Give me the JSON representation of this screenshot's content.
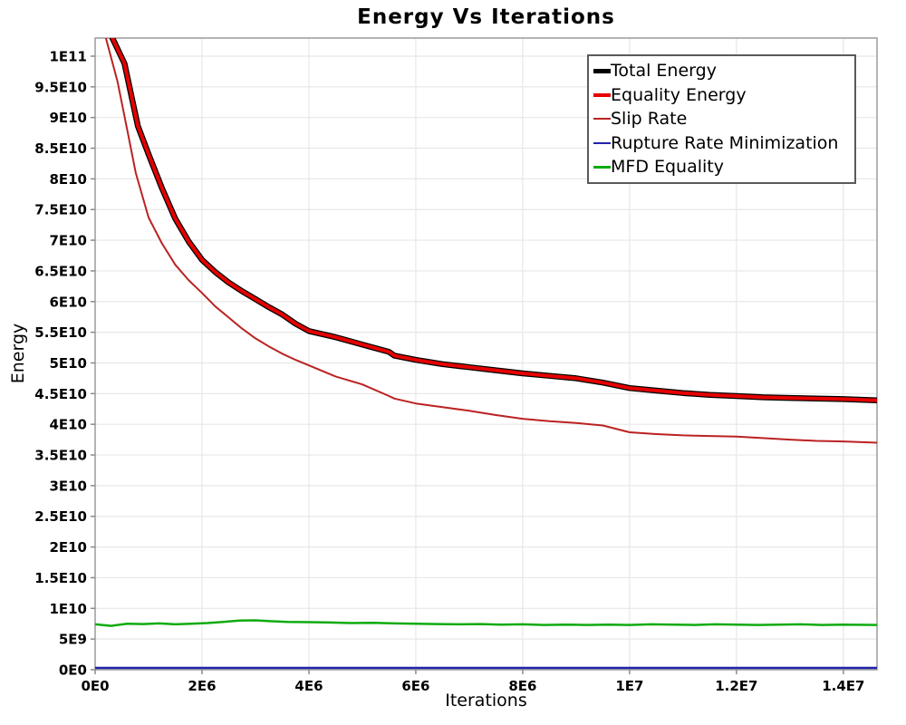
{
  "chart_data": {
    "type": "line",
    "title": "Energy Vs Iterations",
    "xlabel": "Iterations",
    "ylabel": "Energy",
    "xlim": [
      0,
      14630000
    ],
    "ylim": [
      0,
      102950000000
    ],
    "grid": true,
    "legend_position": "top-right",
    "xticks": [
      {
        "v": 0,
        "label": "0E0"
      },
      {
        "v": 2000000,
        "label": "2E6"
      },
      {
        "v": 4000000,
        "label": "4E6"
      },
      {
        "v": 6000000,
        "label": "6E6"
      },
      {
        "v": 8000000,
        "label": "8E6"
      },
      {
        "v": 10000000,
        "label": "1E7"
      },
      {
        "v": 12000000,
        "label": "1.2E7"
      },
      {
        "v": 14000000,
        "label": "1.4E7"
      }
    ],
    "yticks": [
      {
        "v": 0,
        "label": "0E0"
      },
      {
        "v": 5000000000,
        "label": "5E9"
      },
      {
        "v": 10000000000,
        "label": "1E10"
      },
      {
        "v": 15000000000,
        "label": "1.5E10"
      },
      {
        "v": 20000000000,
        "label": "2E10"
      },
      {
        "v": 25000000000,
        "label": "2.5E10"
      },
      {
        "v": 30000000000,
        "label": "3E10"
      },
      {
        "v": 35000000000,
        "label": "3.5E10"
      },
      {
        "v": 40000000000,
        "label": "4E10"
      },
      {
        "v": 45000000000,
        "label": "4.5E10"
      },
      {
        "v": 50000000000,
        "label": "5E10"
      },
      {
        "v": 55000000000,
        "label": "5.5E10"
      },
      {
        "v": 60000000000,
        "label": "6E10"
      },
      {
        "v": 65000000000,
        "label": "6.5E10"
      },
      {
        "v": 70000000000,
        "label": "7E10"
      },
      {
        "v": 75000000000,
        "label": "7.5E10"
      },
      {
        "v": 80000000000,
        "label": "8E10"
      },
      {
        "v": 85000000000,
        "label": "8.5E10"
      },
      {
        "v": 90000000000,
        "label": "9E10"
      },
      {
        "v": 95000000000,
        "label": "9.5E10"
      },
      {
        "v": 100000000000,
        "label": "1E11"
      }
    ],
    "series": [
      {
        "name": "Total Energy",
        "color": "#000000",
        "width": 6.5,
        "points": [
          [
            250000,
            120000000000.0
          ],
          [
            320000,
            103000000000.0
          ],
          [
            550000,
            98800000000.0
          ],
          [
            800000,
            88600000000.0
          ],
          [
            1000000,
            84000000000.0
          ],
          [
            1250000,
            78500000000.0
          ],
          [
            1500000,
            73500000000.0
          ],
          [
            1750000,
            69800000000.0
          ],
          [
            2000000,
            66800000000.0
          ],
          [
            2250000,
            64800000000.0
          ],
          [
            2500000,
            63100000000.0
          ],
          [
            2750000,
            61700000000.0
          ],
          [
            3000000,
            60400000000.0
          ],
          [
            3250000,
            59100000000.0
          ],
          [
            3500000,
            57900000000.0
          ],
          [
            3750000,
            56400000000.0
          ],
          [
            4000000,
            55200000000.0
          ],
          [
            4500000,
            54200000000.0
          ],
          [
            5000000,
            53000000000.0
          ],
          [
            5500000,
            51800000000.0
          ],
          [
            5600000,
            51200000000.0
          ],
          [
            6000000,
            50500000000.0
          ],
          [
            6500000,
            49800000000.0
          ],
          [
            7000000,
            49300000000.0
          ],
          [
            7500000,
            48800000000.0
          ],
          [
            8000000,
            48300000000.0
          ],
          [
            8500000,
            47900000000.0
          ],
          [
            9000000,
            47500000000.0
          ],
          [
            9500000,
            46800000000.0
          ],
          [
            10000000,
            45900000000.0
          ],
          [
            10500000,
            45500000000.0
          ],
          [
            11000000,
            45100000000.0
          ],
          [
            11500000,
            44800000000.0
          ],
          [
            12000000,
            44600000000.0
          ],
          [
            12500000,
            44400000000.0
          ],
          [
            13000000,
            44300000000.0
          ],
          [
            13500000,
            44200000000.0
          ],
          [
            14000000,
            44100000000.0
          ],
          [
            14630000,
            43900000000.0
          ]
        ]
      },
      {
        "name": "Equality Energy",
        "color": "#e60000",
        "width": 4,
        "points": [
          [
            250000,
            120000000000.0
          ],
          [
            320000,
            103000000000.0
          ],
          [
            550000,
            98800000000.0
          ],
          [
            800000,
            88600000000.0
          ],
          [
            1000000,
            84000000000.0
          ],
          [
            1250000,
            78500000000.0
          ],
          [
            1500000,
            73500000000.0
          ],
          [
            1750000,
            69800000000.0
          ],
          [
            2000000,
            66800000000.0
          ],
          [
            2250000,
            64800000000.0
          ],
          [
            2500000,
            63100000000.0
          ],
          [
            2750000,
            61700000000.0
          ],
          [
            3000000,
            60400000000.0
          ],
          [
            3250000,
            59100000000.0
          ],
          [
            3500000,
            57900000000.0
          ],
          [
            3750000,
            56400000000.0
          ],
          [
            4000000,
            55200000000.0
          ],
          [
            4500000,
            54200000000.0
          ],
          [
            5000000,
            53000000000.0
          ],
          [
            5500000,
            51800000000.0
          ],
          [
            5600000,
            51200000000.0
          ],
          [
            6000000,
            50500000000.0
          ],
          [
            6500000,
            49800000000.0
          ],
          [
            7000000,
            49300000000.0
          ],
          [
            7500000,
            48800000000.0
          ],
          [
            8000000,
            48300000000.0
          ],
          [
            8500000,
            47900000000.0
          ],
          [
            9000000,
            47500000000.0
          ],
          [
            9500000,
            46800000000.0
          ],
          [
            10000000,
            45900000000.0
          ],
          [
            10500000,
            45500000000.0
          ],
          [
            11000000,
            45100000000.0
          ],
          [
            11500000,
            44800000000.0
          ],
          [
            12000000,
            44600000000.0
          ],
          [
            12500000,
            44400000000.0
          ],
          [
            13000000,
            44300000000.0
          ],
          [
            13500000,
            44200000000.0
          ],
          [
            14000000,
            44100000000.0
          ],
          [
            14630000,
            43900000000.0
          ]
        ]
      },
      {
        "name": "Slip Rate",
        "color": "#bb2222",
        "width": 2,
        "points": [
          [
            150000,
            120000000000.0
          ],
          [
            200000,
            103000000000.0
          ],
          [
            420000,
            95800000000.0
          ],
          [
            600000,
            88000000000.0
          ],
          [
            760000,
            81000000000.0
          ],
          [
            1000000,
            73700000000.0
          ],
          [
            1250000,
            69500000000.0
          ],
          [
            1500000,
            66000000000.0
          ],
          [
            1750000,
            63500000000.0
          ],
          [
            2000000,
            61400000000.0
          ],
          [
            2250000,
            59200000000.0
          ],
          [
            2500000,
            57400000000.0
          ],
          [
            2750000,
            55600000000.0
          ],
          [
            3000000,
            54000000000.0
          ],
          [
            3250000,
            52700000000.0
          ],
          [
            3500000,
            51500000000.0
          ],
          [
            3750000,
            50500000000.0
          ],
          [
            4000000,
            49600000000.0
          ],
          [
            4250000,
            48700000000.0
          ],
          [
            4500000,
            47800000000.0
          ],
          [
            5000000,
            46500000000.0
          ],
          [
            5500000,
            44600000000.0
          ],
          [
            5600000,
            44200000000.0
          ],
          [
            6000000,
            43400000000.0
          ],
          [
            6500000,
            42800000000.0
          ],
          [
            7000000,
            42200000000.0
          ],
          [
            7500000,
            41500000000.0
          ],
          [
            8000000,
            40900000000.0
          ],
          [
            8500000,
            40500000000.0
          ],
          [
            9000000,
            40200000000.0
          ],
          [
            9500000,
            39800000000.0
          ],
          [
            10000000,
            38700000000.0
          ],
          [
            10500000,
            38400000000.0
          ],
          [
            11000000,
            38200000000.0
          ],
          [
            11500000,
            38100000000.0
          ],
          [
            12000000,
            38000000000.0
          ],
          [
            12600000,
            37700000000.0
          ],
          [
            13000000,
            37500000000.0
          ],
          [
            13500000,
            37300000000.0
          ],
          [
            14000000,
            37200000000.0
          ],
          [
            14630000,
            37000000000.0
          ]
        ]
      },
      {
        "name": "Rupture Rate Minimization",
        "color": "#2222aa",
        "width": 2.5,
        "points": [
          [
            0,
            300000000.0
          ],
          [
            14630000,
            300000000.0
          ]
        ]
      },
      {
        "name": "MFD Equality",
        "color": "#0fab0f",
        "width": 2.5,
        "points": [
          [
            0,
            7400000000.0
          ],
          [
            300000,
            7150000000.0
          ],
          [
            600000,
            7500000000.0
          ],
          [
            900000,
            7450000000.0
          ],
          [
            1200000,
            7550000000.0
          ],
          [
            1500000,
            7400000000.0
          ],
          [
            1800000,
            7500000000.0
          ],
          [
            2100000,
            7600000000.0
          ],
          [
            2400000,
            7800000000.0
          ],
          [
            2700000,
            8000000000.0
          ],
          [
            3000000,
            8050000000.0
          ],
          [
            3300000,
            7900000000.0
          ],
          [
            3600000,
            7800000000.0
          ],
          [
            4000000,
            7750000000.0
          ],
          [
            4400000,
            7700000000.0
          ],
          [
            4800000,
            7600000000.0
          ],
          [
            5200000,
            7650000000.0
          ],
          [
            5600000,
            7550000000.0
          ],
          [
            6000000,
            7500000000.0
          ],
          [
            6400000,
            7450000000.0
          ],
          [
            6800000,
            7400000000.0
          ],
          [
            7200000,
            7450000000.0
          ],
          [
            7600000,
            7350000000.0
          ],
          [
            8000000,
            7400000000.0
          ],
          [
            8400000,
            7300000000.0
          ],
          [
            8800000,
            7350000000.0
          ],
          [
            9200000,
            7300000000.0
          ],
          [
            9600000,
            7350000000.0
          ],
          [
            10000000,
            7300000000.0
          ],
          [
            10400000,
            7400000000.0
          ],
          [
            10800000,
            7350000000.0
          ],
          [
            11200000,
            7300000000.0
          ],
          [
            11600000,
            7400000000.0
          ],
          [
            12000000,
            7350000000.0
          ],
          [
            12400000,
            7300000000.0
          ],
          [
            12800000,
            7350000000.0
          ],
          [
            13200000,
            7400000000.0
          ],
          [
            13600000,
            7300000000.0
          ],
          [
            14000000,
            7350000000.0
          ],
          [
            14630000,
            7300000000.0
          ]
        ]
      }
    ]
  },
  "colors": {
    "background": "#ffffff",
    "grid": "#e7e7e7",
    "spine": "#9c9c9c",
    "tick": "#8a8a8a",
    "legend_border": "#5a5a5a",
    "text": "#000000"
  }
}
